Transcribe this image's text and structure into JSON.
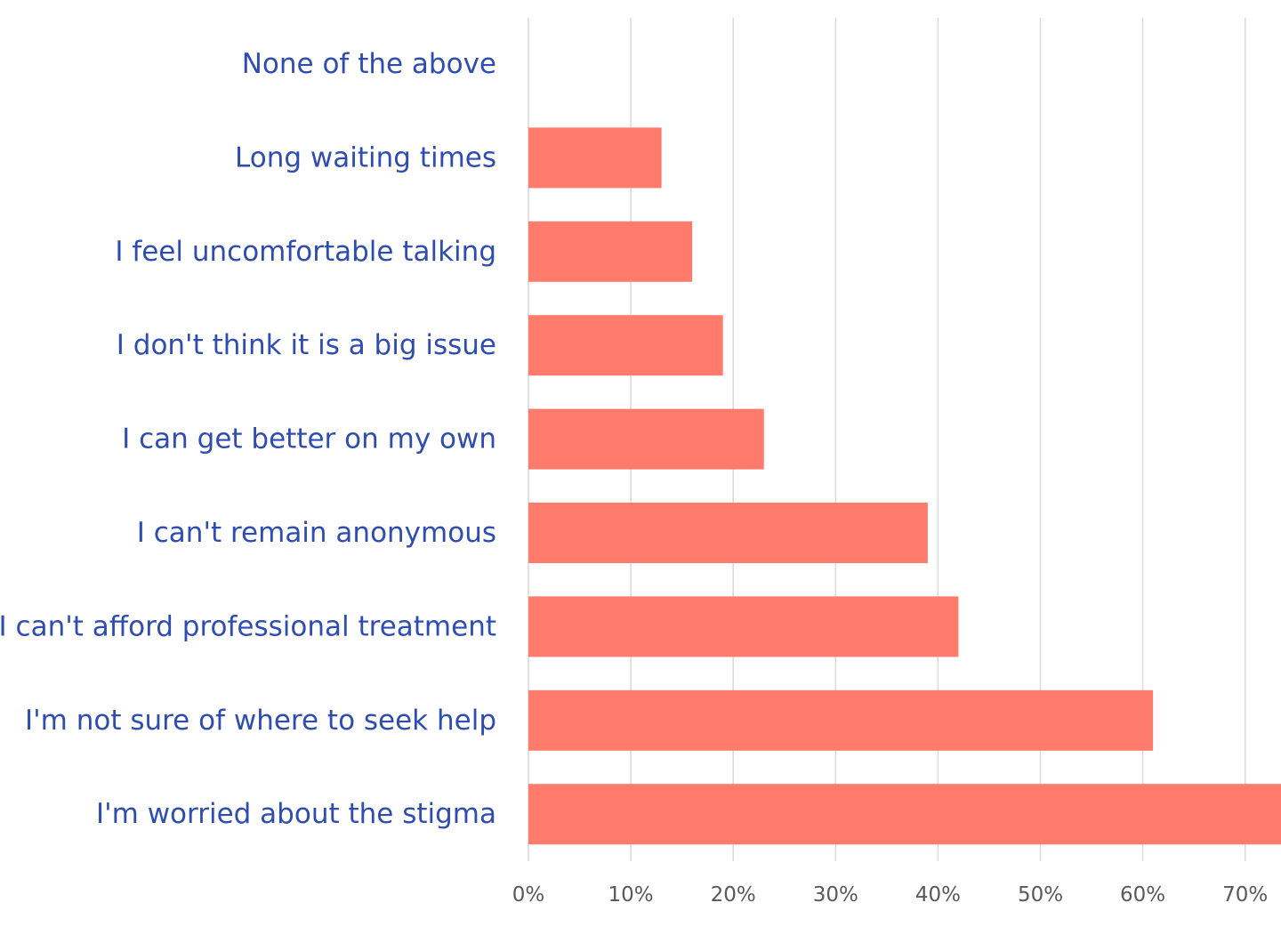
{
  "chart_data": {
    "type": "bar",
    "orientation": "horizontal",
    "categories": [
      "None of the above",
      "Long waiting times",
      "I feel uncomfortable talking",
      "I don't think it is a big issue",
      "I can get better on my own",
      "I can't remain anonymous",
      "I can't afford professional treatment",
      "I'm not sure of where to seek help",
      "I'm worried about the stigma"
    ],
    "values": [
      0,
      13,
      16,
      19,
      23,
      39,
      42,
      61,
      74
    ],
    "xlim": [
      0,
      70
    ],
    "x_ticks": [
      0,
      10,
      20,
      30,
      40,
      50,
      60,
      70
    ],
    "x_tick_labels": [
      "0%",
      "10%",
      "20%",
      "30%",
      "40%",
      "50%",
      "60%",
      "70%"
    ],
    "value_unit": "percent",
    "grid": "vertical",
    "legend": "none",
    "bar_color": "#ff7b6b",
    "label_color": "#2f4db0"
  }
}
